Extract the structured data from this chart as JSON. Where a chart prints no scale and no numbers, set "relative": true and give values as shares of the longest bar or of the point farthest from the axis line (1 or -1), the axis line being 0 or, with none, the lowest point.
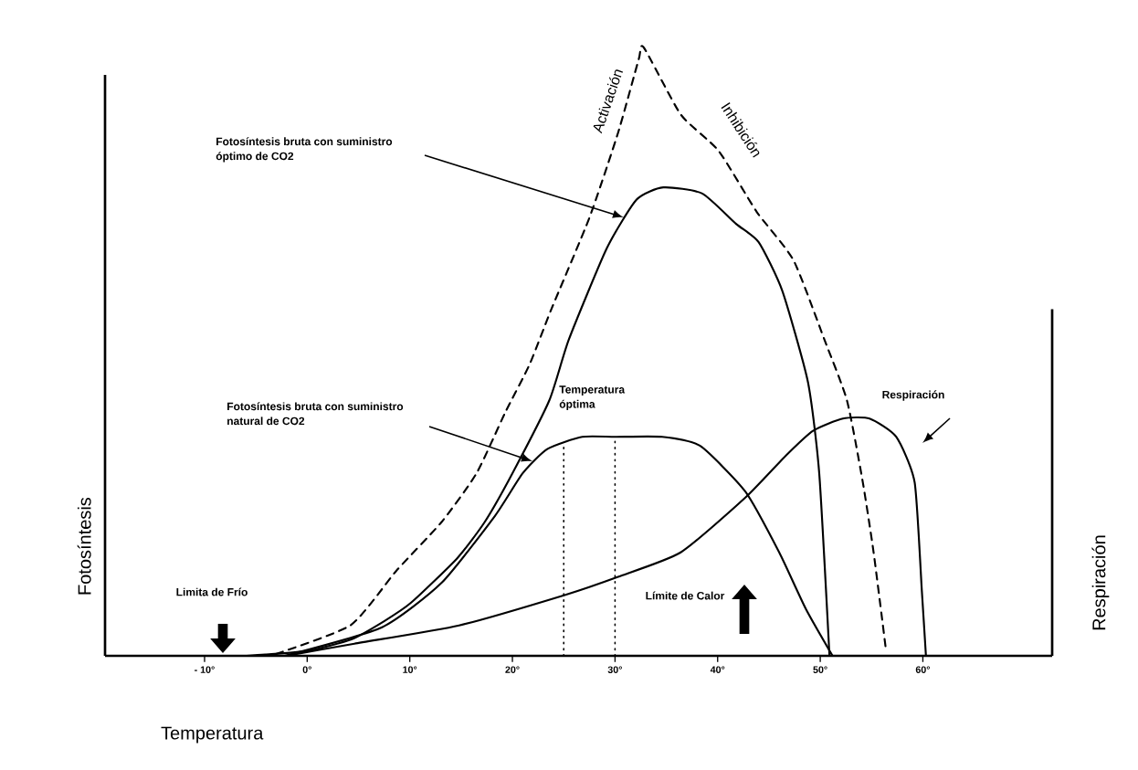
{
  "chart_data": {
    "type": "line",
    "relative": true,
    "xlabel": "Temperatura",
    "ylabel": "Fotosíntesis",
    "y2label": "Respiración",
    "marker": "none",
    "xlim": [
      -19.7,
      72.6
    ],
    "xticks": [
      {
        "value": -10,
        "label": "- 10°"
      },
      {
        "value": 0,
        "label": "0°"
      },
      {
        "value": 10,
        "label": "10°"
      },
      {
        "value": 20,
        "label": "20°"
      },
      {
        "value": 30,
        "label": "30°"
      },
      {
        "value": 40,
        "label": "40°"
      },
      {
        "value": 50,
        "label": "50°"
      },
      {
        "value": 60,
        "label": "60°"
      }
    ],
    "series": [
      {
        "color": "#000000",
        "line_style": "dashed",
        "x": [
          -3.6,
          4.2,
          8.7,
          13.1,
          16.5,
          19.3,
          21.7,
          23.8,
          27.5,
          30.3,
          32.3,
          32.8,
          36.4,
          40.1,
          43.8,
          47.4,
          50.4,
          52.6,
          54.1,
          55.2,
          56.4
        ],
        "values": [
          0,
          0.05,
          0.14,
          0.22,
          0.3,
          0.4,
          0.48,
          0.57,
          0.72,
          0.86,
          0.98,
          1,
          0.89,
          0.83,
          0.73,
          0.65,
          0.52,
          0.42,
          0.29,
          0.17,
          0.01
        ]
      },
      {
        "color": "#000000",
        "line_style": "solid",
        "x": [
          -5.9,
          -4.1,
          0,
          4.3,
          7.5,
          10.1,
          14.6,
          17.3,
          20,
          23.6,
          25.5,
          29.2,
          32.1,
          34.7,
          38.5,
          41.8,
          44,
          46.3,
          48.8,
          49.9,
          50.9
        ],
        "values": [
          0,
          0.002,
          0.008,
          0.027,
          0.057,
          0.087,
          0.16,
          0.22,
          0.3,
          0.42,
          0.52,
          0.67,
          0.75,
          0.77,
          0.76,
          0.71,
          0.68,
          0.6,
          0.45,
          0.3,
          0
        ]
      },
      {
        "color": "#000000",
        "line_style": "solid",
        "x": [
          -2.2,
          7.3,
          13.1,
          18.3,
          21,
          23.4,
          26.8,
          30,
          34.6,
          38.3,
          42.7,
          46,
          48.6,
          51.2
        ],
        "values": [
          0,
          0.047,
          0.12,
          0.23,
          0.3,
          0.34,
          0.36,
          0.36,
          0.36,
          0.345,
          0.27,
          0.17,
          0.077,
          0
        ]
      },
      {
        "color": "#000000",
        "line_style": "solid",
        "x": [
          -2,
          4.6,
          14.8,
          25.1,
          30.3,
          36.4,
          42.7,
          46.7,
          49.3,
          52.2,
          54.8,
          57.4,
          59.2,
          59.9,
          60.3
        ],
        "values": [
          0,
          0.02,
          0.05,
          0.1,
          0.13,
          0.17,
          0.26,
          0.33,
          0.37,
          0.39,
          0.39,
          0.36,
          0.285,
          0.107,
          0
        ]
      },
      {
        "color": "#000000",
        "line_style": "dotted",
        "x": [
          25,
          25
        ],
        "values": [
          0,
          0.35
        ]
      },
      {
        "color": "#000000",
        "line_style": "dotted",
        "x": [
          30,
          30
        ],
        "values": [
          0,
          0.36
        ]
      }
    ],
    "annotations": [
      "Fotosíntesis bruta con suministro óptimo de CO2",
      "Fotosíntesis bruta con suministro natural de CO2",
      "Temperatura óptima",
      "Respiración",
      "Limita de Frío",
      "Límite de Calor",
      "Activación",
      "Inhibición"
    ]
  }
}
